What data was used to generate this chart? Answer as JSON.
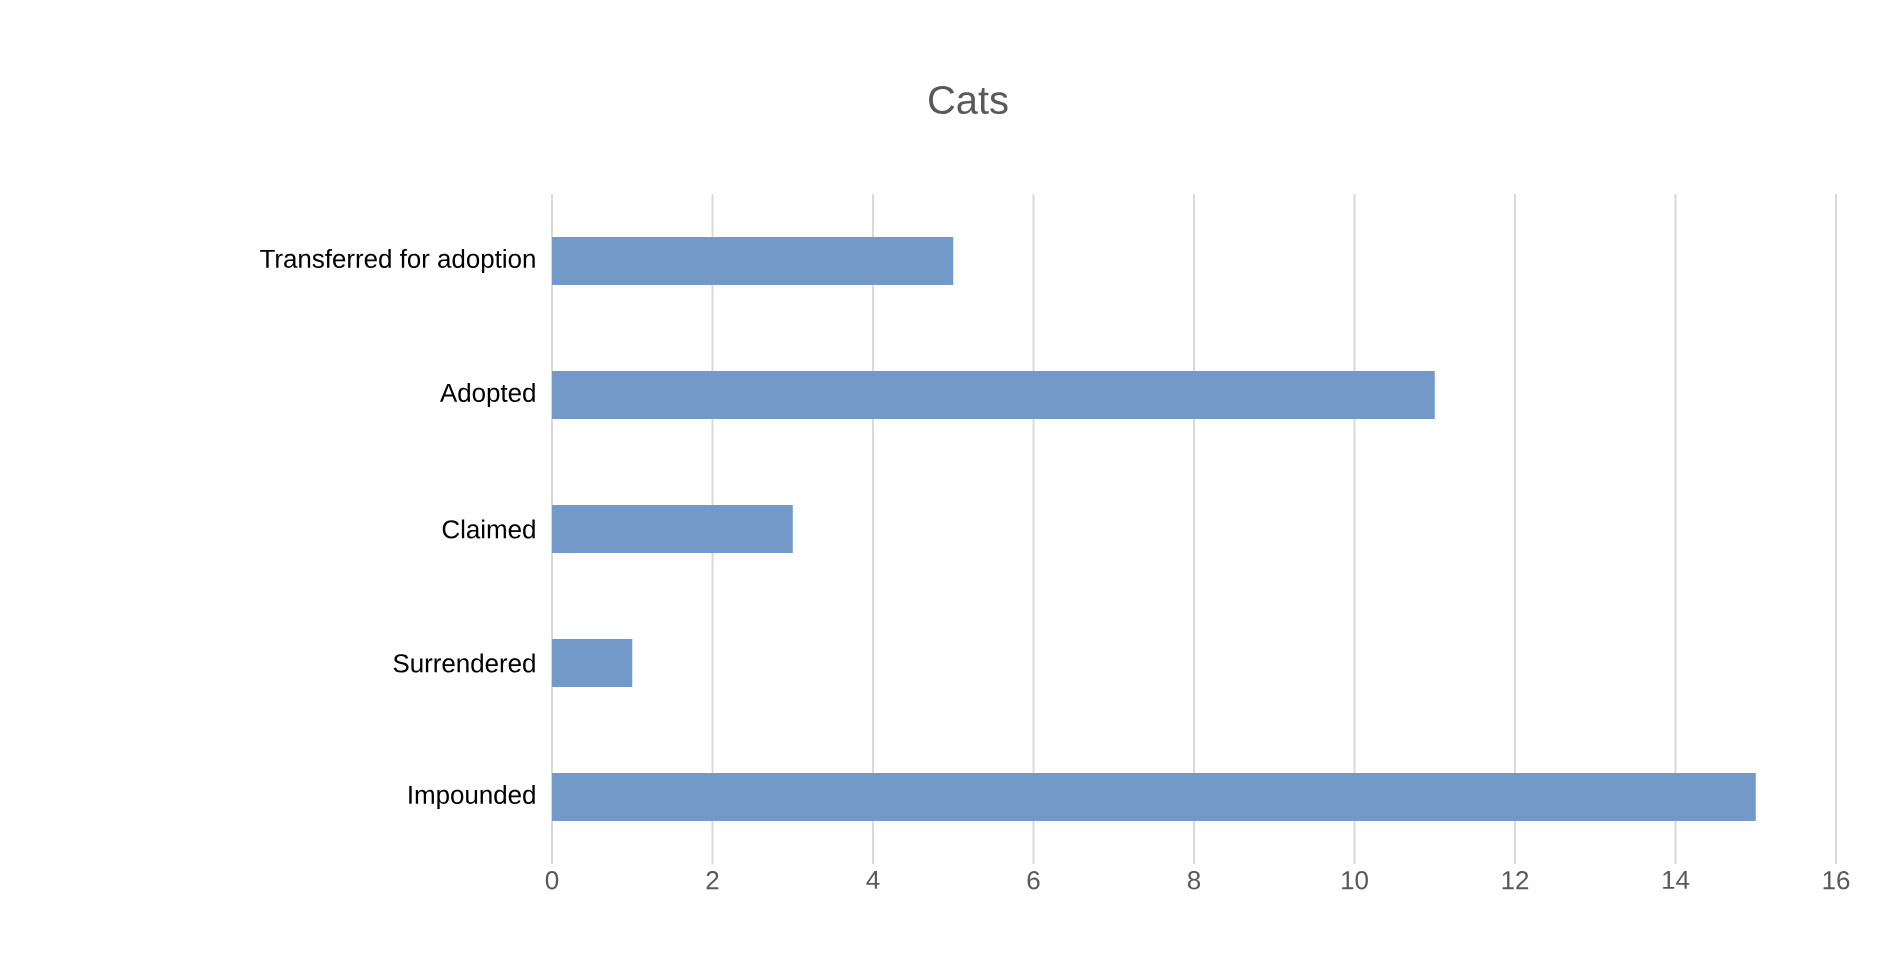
{
  "chart_data": {
    "type": "bar",
    "orientation": "horizontal",
    "title": "Cats",
    "categories": [
      "Transferred for adoption",
      "Adopted",
      "Claimed",
      "Surrendered",
      "Impounded"
    ],
    "values": [
      5,
      11,
      3,
      1,
      15
    ],
    "color": "#7399c9",
    "xlim": [
      0,
      16
    ],
    "xticks": [
      0,
      2,
      4,
      6,
      8,
      10,
      12,
      14,
      16
    ],
    "grid": "x"
  }
}
